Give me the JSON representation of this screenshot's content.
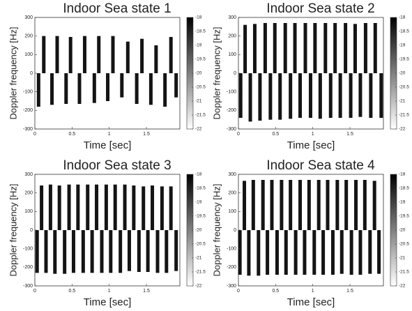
{
  "chart_data": [
    {
      "type": "spectrogram",
      "title": "Indoor Sea state 1",
      "xlabel": "Time [sec]",
      "ylabel": "Doppler frequency [Hz]",
      "xlim": [
        0,
        1.95
      ],
      "xticks": [
        0,
        0.5,
        1,
        1.5
      ],
      "ylim": [
        -300,
        300
      ],
      "yticks": [
        -300,
        -200,
        -100,
        0,
        100,
        200,
        300
      ],
      "clim": [
        -22,
        -18
      ],
      "cticks": [
        -22,
        -21.5,
        -21,
        -20.5,
        -20,
        -19.5,
        -19,
        -18.5,
        -18
      ],
      "color": "#000000",
      "series": [
        {
          "x": [
            0.12,
            0.3,
            0.48,
            0.67,
            0.86,
            1.05,
            1.25,
            1.44,
            1.63,
            1.83
          ],
          "values": [
            200,
            200,
            195,
            200,
            200,
            200,
            170,
            185,
            150,
            195
          ]
        },
        {
          "x": [
            0.05,
            0.23,
            0.42,
            0.6,
            0.8,
            0.98,
            1.17,
            1.37,
            1.56,
            1.75,
            1.9
          ],
          "values": [
            -180,
            -170,
            -165,
            -165,
            -160,
            -150,
            -130,
            -165,
            -170,
            -180,
            -130
          ]
        }
      ]
    },
    {
      "type": "spectrogram",
      "title": "Indoor Sea state 2",
      "xlabel": "Time [sec]",
      "ylabel": "Doppler frequency [Hz]",
      "xlim": [
        0,
        1.95
      ],
      "xticks": [
        0,
        0.5,
        1,
        1.5
      ],
      "ylim": [
        -300,
        300
      ],
      "yticks": [
        -300,
        -200,
        -100,
        0,
        100,
        200,
        300
      ],
      "clim": [
        -22,
        -18
      ],
      "cticks": [
        -22,
        -21.5,
        -21,
        -20.5,
        -20,
        -19.5,
        -19,
        -18.5,
        -18
      ],
      "color": "#000000",
      "series": [
        {
          "x": [
            0.09,
            0.22,
            0.36,
            0.49,
            0.63,
            0.76,
            0.9,
            1.03,
            1.17,
            1.3,
            1.44,
            1.57,
            1.71,
            1.84
          ],
          "values": [
            260,
            265,
            270,
            270,
            270,
            270,
            270,
            270,
            270,
            270,
            270,
            265,
            270,
            270
          ]
        },
        {
          "x": [
            0.03,
            0.16,
            0.29,
            0.43,
            0.56,
            0.7,
            0.83,
            0.97,
            1.1,
            1.24,
            1.37,
            1.51,
            1.64,
            1.78,
            1.92
          ],
          "values": [
            -240,
            -260,
            -255,
            -250,
            -250,
            -245,
            -240,
            -240,
            -245,
            -240,
            -240,
            -240,
            -235,
            -240,
            -240
          ]
        }
      ]
    },
    {
      "type": "spectrogram",
      "title": "Indoor Sea state 3",
      "xlabel": "Time [sec]",
      "ylabel": "Doppler frequency [Hz]",
      "xlim": [
        0,
        1.95
      ],
      "xticks": [
        0,
        0.5,
        1,
        1.5
      ],
      "ylim": [
        -300,
        300
      ],
      "yticks": [
        -300,
        -200,
        -100,
        0,
        100,
        200,
        300
      ],
      "clim": [
        -22,
        -18
      ],
      "cticks": [
        -22,
        -21.5,
        -21,
        -20.5,
        -20,
        -19.5,
        -19,
        -18.5,
        -18
      ],
      "color": "#000000",
      "series": [
        {
          "x": [
            0.09,
            0.21,
            0.33,
            0.46,
            0.58,
            0.71,
            0.83,
            0.96,
            1.08,
            1.21,
            1.33,
            1.46,
            1.58,
            1.71,
            1.83
          ],
          "values": [
            240,
            245,
            240,
            245,
            245,
            245,
            245,
            245,
            245,
            245,
            240,
            235,
            240,
            235,
            235
          ]
        },
        {
          "x": [
            0.03,
            0.15,
            0.27,
            0.4,
            0.52,
            0.65,
            0.77,
            0.9,
            1.02,
            1.15,
            1.27,
            1.4,
            1.52,
            1.65,
            1.77,
            1.9
          ],
          "values": [
            -230,
            -230,
            -235,
            -235,
            -230,
            -230,
            -230,
            -230,
            -230,
            -230,
            -220,
            -225,
            -225,
            -230,
            -230,
            -220
          ]
        }
      ]
    },
    {
      "type": "spectrogram",
      "title": "Indoor Sea state 4",
      "xlabel": "Time [sec]",
      "ylabel": "Doppler frequency [Hz]",
      "xlim": [
        0,
        1.95
      ],
      "xticks": [
        0,
        0.5,
        1,
        1.5
      ],
      "ylim": [
        -300,
        300
      ],
      "yticks": [
        -300,
        -200,
        -100,
        0,
        100,
        200,
        300
      ],
      "clim": [
        -22,
        -18
      ],
      "cticks": [
        -22,
        -21.5,
        -21,
        -20.5,
        -20,
        -19.5,
        -19,
        -18.5,
        -18
      ],
      "color": "#000000",
      "series": [
        {
          "x": [
            0.08,
            0.2,
            0.33,
            0.45,
            0.58,
            0.7,
            0.83,
            0.95,
            1.08,
            1.2,
            1.33,
            1.45,
            1.58,
            1.7,
            1.83
          ],
          "values": [
            265,
            270,
            270,
            270,
            270,
            270,
            270,
            270,
            270,
            270,
            270,
            270,
            270,
            270,
            265
          ]
        },
        {
          "x": [
            0.02,
            0.14,
            0.27,
            0.39,
            0.52,
            0.64,
            0.77,
            0.89,
            1.02,
            1.14,
            1.27,
            1.39,
            1.52,
            1.64,
            1.77,
            1.89
          ],
          "values": [
            -240,
            -245,
            -245,
            -240,
            -240,
            -240,
            -240,
            -240,
            -240,
            -240,
            -240,
            -235,
            -240,
            -240,
            -235,
            -235
          ]
        }
      ]
    }
  ]
}
